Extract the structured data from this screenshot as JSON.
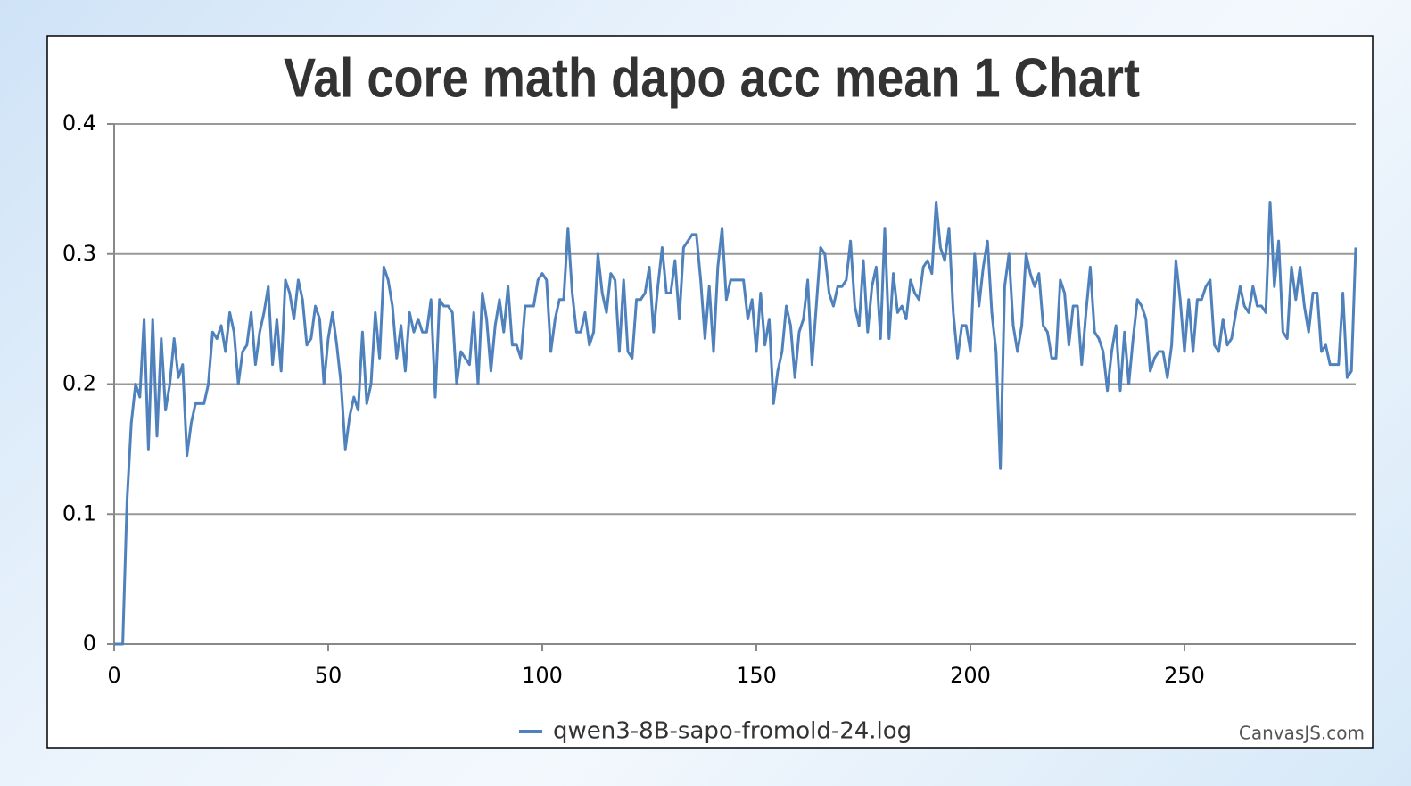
{
  "chart_data": {
    "type": "line",
    "title": "Val core math dapo acc mean 1 Chart",
    "credit": "CanvasJS.com",
    "x": [
      0,
      1,
      2,
      3,
      4,
      5,
      6,
      7,
      8,
      9,
      10,
      11,
      12,
      13,
      14,
      15,
      16,
      17,
      18,
      19,
      20,
      21,
      22,
      23,
      24,
      25,
      26,
      27,
      28,
      29,
      30,
      31,
      32,
      33,
      34,
      35,
      36,
      37,
      38,
      39,
      40,
      41,
      42,
      43,
      44,
      45,
      46,
      47,
      48,
      49,
      50,
      51,
      52,
      53,
      54,
      55,
      56,
      57,
      58,
      59,
      60,
      61,
      62,
      63,
      64,
      65,
      66,
      67,
      68,
      69,
      70,
      71,
      72,
      73,
      74,
      75,
      76,
      77,
      78,
      79,
      80,
      81,
      82,
      83,
      84,
      85,
      86,
      87,
      88,
      89,
      90,
      91,
      92,
      93,
      94,
      95,
      96,
      97,
      98,
      99,
      100,
      101,
      102,
      103,
      104,
      105,
      106,
      107,
      108,
      109,
      110,
      111,
      112,
      113,
      114,
      115,
      116,
      117,
      118,
      119,
      120,
      121,
      122,
      123,
      124,
      125,
      126,
      127,
      128,
      129,
      130,
      131,
      132,
      133,
      134,
      135,
      136,
      137,
      138,
      139,
      140,
      141,
      142,
      143,
      144,
      145,
      146,
      147,
      148,
      149,
      150,
      151,
      152,
      153,
      154,
      155,
      156,
      157,
      158,
      159,
      160,
      161,
      162,
      163,
      164,
      165,
      166,
      167,
      168,
      169,
      170,
      171,
      172,
      173,
      174,
      175,
      176,
      177,
      178,
      179,
      180,
      181,
      182,
      183,
      184,
      185,
      186,
      187,
      188,
      189,
      190,
      191,
      192,
      193,
      194,
      195,
      196,
      197,
      198,
      199,
      200,
      201,
      202,
      203,
      204,
      205,
      206,
      207,
      208,
      209,
      210,
      211,
      212,
      213,
      214,
      215,
      216,
      217,
      218,
      219,
      220,
      221,
      222,
      223,
      224,
      225,
      226,
      227,
      228,
      229,
      230,
      231,
      232,
      233,
      234,
      235,
      236,
      237,
      238,
      239,
      240,
      241,
      242,
      243,
      244,
      245,
      246,
      247,
      248,
      249,
      250,
      251,
      252,
      253,
      254,
      255,
      256,
      257,
      258,
      259,
      260,
      261,
      262,
      263,
      264,
      265,
      266,
      267,
      268,
      269,
      270,
      271,
      272,
      273,
      274,
      275,
      276,
      277,
      278,
      279,
      280,
      281,
      282,
      283,
      284,
      285,
      286,
      287,
      288,
      289,
      290
    ],
    "series": [
      {
        "name": "qwen3-8B-sapo-fromold-24.log",
        "color": "#4f81bd",
        "values": [
          0,
          0,
          0,
          0.11,
          0.17,
          0.2,
          0.19,
          0.25,
          0.15,
          0.25,
          0.16,
          0.235,
          0.18,
          0.2,
          0.235,
          0.205,
          0.215,
          0.145,
          0.17,
          0.185,
          0.185,
          0.185,
          0.2,
          0.24,
          0.235,
          0.245,
          0.225,
          0.255,
          0.24,
          0.2,
          0.225,
          0.23,
          0.255,
          0.215,
          0.24,
          0.255,
          0.275,
          0.215,
          0.25,
          0.21,
          0.28,
          0.27,
          0.25,
          0.28,
          0.265,
          0.23,
          0.235,
          0.26,
          0.25,
          0.2,
          0.235,
          0.255,
          0.23,
          0.2,
          0.15,
          0.175,
          0.19,
          0.18,
          0.24,
          0.185,
          0.2,
          0.255,
          0.22,
          0.29,
          0.28,
          0.26,
          0.22,
          0.245,
          0.21,
          0.255,
          0.24,
          0.25,
          0.24,
          0.24,
          0.265,
          0.19,
          0.265,
          0.26,
          0.26,
          0.255,
          0.2,
          0.225,
          0.22,
          0.215,
          0.255,
          0.2,
          0.27,
          0.25,
          0.21,
          0.245,
          0.265,
          0.24,
          0.275,
          0.23,
          0.23,
          0.22,
          0.26,
          0.26,
          0.26,
          0.28,
          0.285,
          0.28,
          0.225,
          0.25,
          0.265,
          0.265,
          0.32,
          0.27,
          0.24,
          0.24,
          0.255,
          0.23,
          0.24,
          0.3,
          0.27,
          0.255,
          0.285,
          0.28,
          0.225,
          0.28,
          0.225,
          0.22,
          0.265,
          0.265,
          0.27,
          0.29,
          0.24,
          0.275,
          0.305,
          0.27,
          0.27,
          0.295,
          0.25,
          0.305,
          0.31,
          0.315,
          0.315,
          0.28,
          0.235,
          0.275,
          0.225,
          0.29,
          0.32,
          0.265,
          0.28,
          0.28,
          0.28,
          0.28,
          0.25,
          0.265,
          0.225,
          0.27,
          0.23,
          0.25,
          0.185,
          0.21,
          0.225,
          0.26,
          0.245,
          0.205,
          0.24,
          0.25,
          0.28,
          0.215,
          0.26,
          0.305,
          0.3,
          0.27,
          0.26,
          0.275,
          0.275,
          0.28,
          0.31,
          0.26,
          0.245,
          0.295,
          0.24,
          0.275,
          0.29,
          0.235,
          0.32,
          0.235,
          0.285,
          0.255,
          0.26,
          0.25,
          0.28,
          0.27,
          0.265,
          0.29,
          0.295,
          0.285,
          0.34,
          0.305,
          0.295,
          0.32,
          0.255,
          0.22,
          0.245,
          0.245,
          0.225,
          0.3,
          0.26,
          0.29,
          0.31,
          0.255,
          0.225,
          0.135,
          0.275,
          0.3,
          0.245,
          0.225,
          0.245,
          0.3,
          0.285,
          0.275,
          0.285,
          0.245,
          0.24,
          0.22,
          0.22,
          0.28,
          0.27,
          0.23,
          0.26,
          0.26,
          0.215,
          0.255,
          0.29,
          0.24,
          0.235,
          0.225,
          0.195,
          0.225,
          0.245,
          0.195,
          0.24,
          0.2,
          0.235,
          0.265,
          0.26,
          0.25,
          0.21,
          0.22,
          0.225,
          0.225,
          0.205,
          0.23,
          0.295,
          0.265,
          0.225,
          0.265,
          0.225,
          0.265,
          0.265,
          0.275,
          0.28,
          0.23,
          0.225,
          0.25,
          0.23,
          0.235,
          0.255,
          0.275,
          0.26,
          0.255,
          0.275,
          0.26,
          0.26,
          0.255,
          0.34,
          0.275,
          0.31,
          0.24,
          0.235,
          0.29,
          0.265,
          0.29,
          0.26,
          0.24,
          0.27,
          0.27,
          0.225,
          0.23,
          0.215,
          0.215,
          0.215,
          0.27,
          0.205,
          0.21,
          0.305
        ]
      }
    ],
    "xlim": [
      0,
      290
    ],
    "xticks": [
      0,
      50,
      100,
      150,
      200,
      250
    ],
    "ylim": [
      0,
      0.4
    ],
    "yticks": [
      0,
      0.1,
      0.2,
      0.3,
      0.4
    ],
    "grid": true
  }
}
